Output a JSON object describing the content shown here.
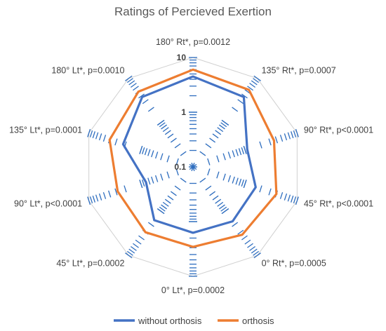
{
  "chart_data": {
    "type": "radar",
    "title": "Ratings of Percieved Exertion",
    "scale": "log",
    "rlim": [
      0.1,
      10
    ],
    "ticks": [
      "10",
      "1",
      "0.1"
    ],
    "tick_values": [
      10,
      1,
      0.1
    ],
    "categories": [
      "180° Rt*, p=0.0012",
      "135° Rt*, p=0.0007",
      "90° Rt*, p<0.0001",
      "45° Rt*, p<0.0001",
      "0° Rt*, p=0.0005",
      "0° Lt*, p=0.0002",
      "45° Lt*, p=0.0002",
      "90° Lt*, p<0.0001",
      "135° Lt*, p=0.0001",
      "180° Lt*, p=0.0010"
    ],
    "series": [
      {
        "name": "without orthosis",
        "color": "#4472C4",
        "values": [
          4.5,
          3.8,
          1.1,
          1.6,
          1.7,
          1.6,
          1.6,
          0.8,
          2.2,
          3.8
        ]
      },
      {
        "name": "orthosis",
        "color": "#ED7D31",
        "values": [
          6.0,
          5.5,
          3.6,
          4.0,
          3.4,
          2.9,
          3.0,
          2.8,
          4.0,
          5.0
        ]
      }
    ],
    "grid": true,
    "legend_position": "bottom"
  }
}
